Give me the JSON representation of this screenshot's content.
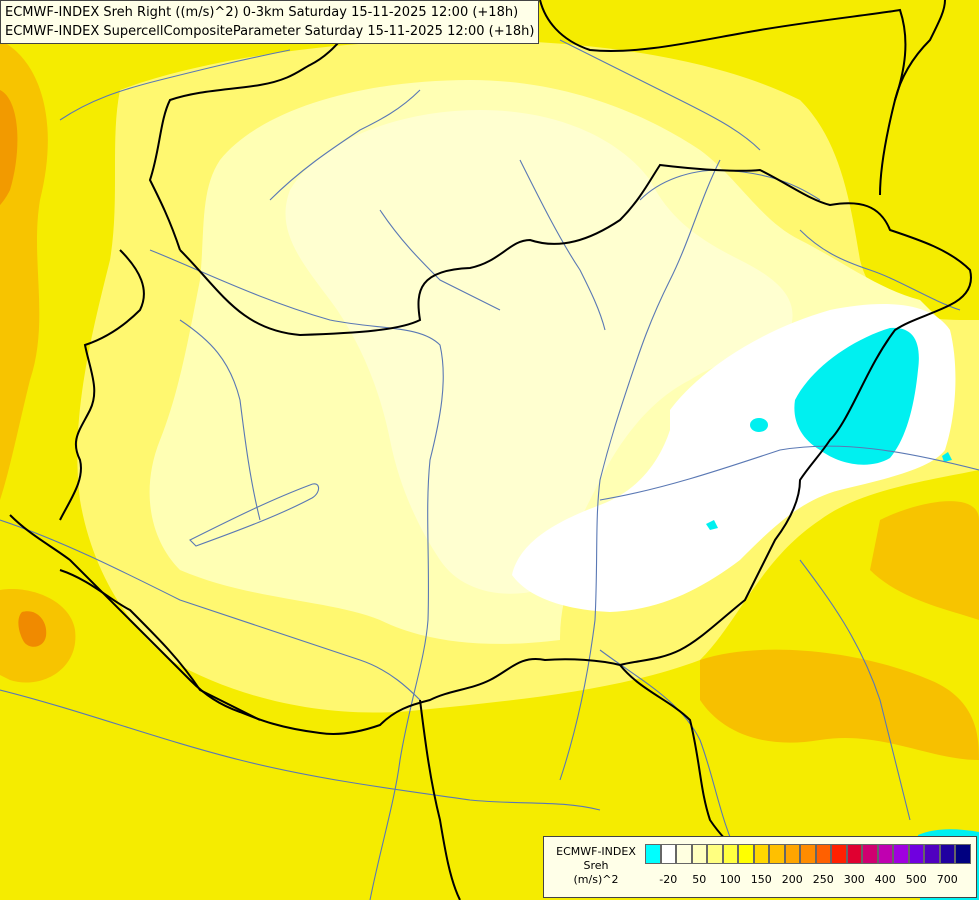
{
  "title": {
    "line1": "ECMWF-INDEX Sreh Right ((m/s)^2) 0-3km Saturday 15-11-2025 12:00 (+18h)",
    "line2": "ECMWF-INDEX SupercellCompositeParameter Saturday 15-11-2025 12:00 (+18h)"
  },
  "legend": {
    "title1": "ECMWF-INDEX",
    "title2": "Sreh",
    "title3": "(m/s)^2",
    "swatch_colors": [
      "#00ffff",
      "#ffffff",
      "#ffffe0",
      "#ffffc0",
      "#ffff80",
      "#ffff40",
      "#ffff00",
      "#ffd700",
      "#ffc000",
      "#ffa500",
      "#ff8c00",
      "#ff6000",
      "#ff2000",
      "#e00030",
      "#d00070",
      "#c000b0",
      "#a000e0",
      "#7000e0",
      "#5000c0",
      "#2000a0",
      "#000080"
    ],
    "ticks": [
      {
        "label": "-20",
        "index": 1
      },
      {
        "label": "50",
        "index": 3
      },
      {
        "label": "100",
        "index": 5
      },
      {
        "label": "150",
        "index": 7
      },
      {
        "label": "200",
        "index": 9
      },
      {
        "label": "250",
        "index": 11
      },
      {
        "label": "300",
        "index": 13
      },
      {
        "label": "400",
        "index": 15
      },
      {
        "label": "500",
        "index": 17
      },
      {
        "label": "700",
        "index": 19
      }
    ]
  },
  "colors": {
    "yellow": "#f5ec00",
    "pale_yellow": "#ffffb0",
    "light_yellow": "#ffff70",
    "cream": "#ffffd0",
    "white": "#ffffff",
    "cyan": "#00f0f0",
    "orange": "#f7b800",
    "dark_orange": "#f08000",
    "border": "#000000",
    "river": "#5a78b4"
  }
}
